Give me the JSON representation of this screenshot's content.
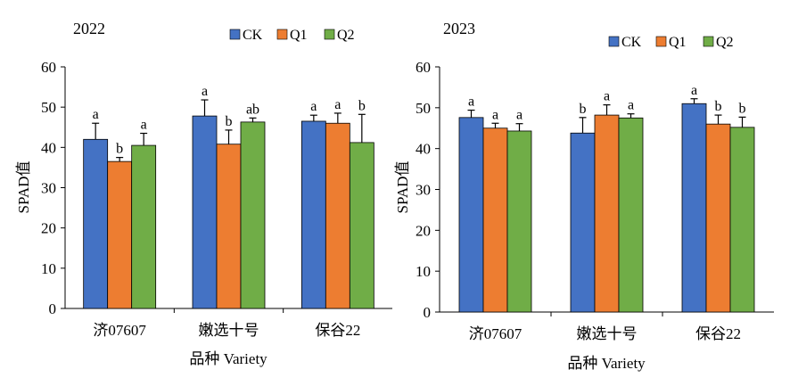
{
  "chart_data": [
    {
      "type": "bar",
      "title": "2022",
      "ylabel": "SPAD值",
      "xlabel": "品种 Variety",
      "categories": [
        "济07607",
        "嫩选十号",
        "保谷22"
      ],
      "ylim": [
        0,
        60
      ],
      "yticks": [
        0,
        10,
        20,
        30,
        40,
        50,
        60
      ],
      "legend_position": "top-right",
      "series": [
        {
          "name": "CK",
          "color": "#4472C4",
          "values": [
            42.0,
            47.8,
            46.5
          ],
          "errors": [
            4.0,
            4.0,
            1.5
          ],
          "labels": [
            "a",
            "a",
            "a"
          ]
        },
        {
          "name": "Q1",
          "color": "#ED7D31",
          "values": [
            36.5,
            40.8,
            46.0
          ],
          "errors": [
            1.0,
            3.5,
            2.5
          ],
          "labels": [
            "b",
            "b",
            "a"
          ]
        },
        {
          "name": "Q2",
          "color": "#70AD47",
          "values": [
            40.5,
            46.3,
            41.2
          ],
          "errors": [
            3.0,
            1.0,
            7.0
          ],
          "labels": [
            "a",
            "ab",
            "b"
          ]
        }
      ]
    },
    {
      "type": "bar",
      "title": "2023",
      "ylabel": "SPAD值",
      "xlabel": "品种 Variety",
      "categories": [
        "济07607",
        "嫩选十号",
        "保谷22"
      ],
      "ylim": [
        0,
        60
      ],
      "yticks": [
        0,
        10,
        20,
        30,
        40,
        50,
        60
      ],
      "legend_position": "top-right",
      "series": [
        {
          "name": "CK",
          "color": "#4472C4",
          "values": [
            47.6,
            43.8,
            51.0
          ],
          "errors": [
            1.8,
            3.8,
            1.2
          ],
          "labels": [
            "a",
            "b",
            "a"
          ]
        },
        {
          "name": "Q1",
          "color": "#ED7D31",
          "values": [
            45.0,
            48.2,
            46.0
          ],
          "errors": [
            1.2,
            2.5,
            2.2
          ],
          "labels": [
            "a",
            "a",
            "b"
          ]
        },
        {
          "name": "Q2",
          "color": "#70AD47",
          "values": [
            44.3,
            47.5,
            45.2
          ],
          "errors": [
            1.8,
            1.0,
            2.5
          ],
          "labels": [
            "a",
            "a",
            "b"
          ]
        }
      ]
    }
  ]
}
